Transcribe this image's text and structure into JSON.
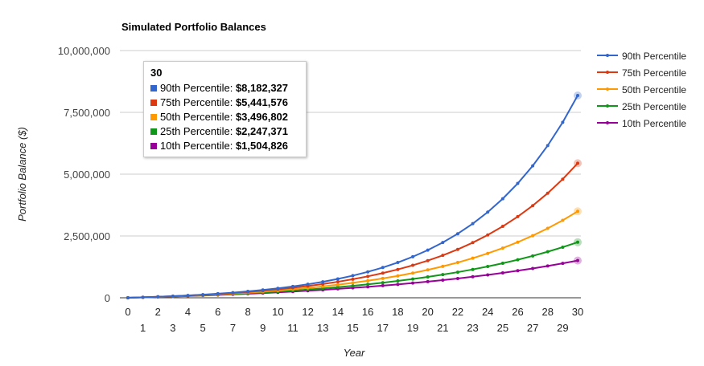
{
  "chart_data": {
    "type": "line",
    "title": "Simulated Portfolio Balances",
    "xlabel": "Year",
    "ylabel": "Portfolio Balance ($)",
    "ylim": [
      0,
      10000000
    ],
    "yticks": [
      "0",
      "2,500,000",
      "5,000,000",
      "7,500,000",
      "10,000,000"
    ],
    "ytick_values": [
      0,
      2500000,
      5000000,
      7500000,
      10000000
    ],
    "x": [
      0,
      1,
      2,
      3,
      4,
      5,
      6,
      7,
      8,
      9,
      10,
      11,
      12,
      13,
      14,
      15,
      16,
      17,
      18,
      19,
      20,
      21,
      22,
      23,
      24,
      25,
      26,
      27,
      28,
      29,
      30
    ],
    "grid": true,
    "legend_position": "right",
    "series": [
      {
        "name": "90th Percentile",
        "color": "#3366cc",
        "values": [
          0,
          18800,
          40500,
          65400,
          94000,
          126900,
          164800,
          208300,
          258400,
          316000,
          382200,
          458300,
          545900,
          646600,
          762400,
          895600,
          1048800,
          1224900,
          1427500,
          1660400,
          1928300,
          2236400,
          2590600,
          2998100,
          3466600,
          4005400,
          4625000,
          5337700,
          6157000,
          7098300,
          8182327
        ]
      },
      {
        "name": "75th Percentile",
        "color": "#dc3912",
        "values": [
          0,
          18600,
          39500,
          63200,
          90000,
          120300,
          154500,
          193100,
          236800,
          286100,
          341900,
          404900,
          476000,
          556500,
          647400,
          750100,
          866200,
          997300,
          1145600,
          1313000,
          1502300,
          1716100,
          1957800,
          2230900,
          2539400,
          2888100,
          3282100,
          3727400,
          4230500,
          4799000,
          5441576
        ]
      },
      {
        "name": "50th Percentile",
        "color": "#ff9900",
        "values": [
          0,
          17600,
          37100,
          58700,
          82800,
          109400,
          139000,
          171900,
          208400,
          248900,
          293800,
          343700,
          399100,
          460500,
          528800,
          604500,
          688600,
          781900,
          885500,
          1000400,
          1128000,
          1269600,
          1426900,
          1601500,
          1795200,
          2010200,
          2249000,
          2513900,
          2808000,
          3134500,
          3496802
        ]
      },
      {
        "name": "25th Percentile",
        "color": "#109618",
        "values": [
          0,
          16500,
          34500,
          54000,
          75400,
          98700,
          124000,
          151700,
          181800,
          214700,
          250500,
          289500,
          332100,
          378400,
          429000,
          484100,
          544200,
          609600,
          681000,
          758700,
          843500,
          935900,
          1036700,
          1146400,
          1266100,
          1396500,
          1538700,
          1693700,
          1862600,
          2046700,
          2247371
        ]
      },
      {
        "name": "10th Percentile",
        "color": "#990099",
        "values": [
          0,
          15900,
          33000,
          51200,
          70700,
          91600,
          114000,
          137900,
          163500,
          190800,
          220100,
          251500,
          285000,
          320900,
          359300,
          400300,
          444300,
          491300,
          541600,
          595500,
          653100,
          714700,
          780700,
          851300,
          926800,
          1007600,
          1094100,
          1186600,
          1285600,
          1391500,
          1504826
        ]
      }
    ],
    "tooltip": {
      "title": "30",
      "rows": [
        {
          "label": "90th Percentile: ",
          "value": "$8,182,327"
        },
        {
          "label": "75th Percentile: ",
          "value": "$5,441,576"
        },
        {
          "label": "50th Percentile: ",
          "value": "$3,496,802"
        },
        {
          "label": "25th Percentile: ",
          "value": "$2,247,371"
        },
        {
          "label": "10th Percentile: ",
          "value": "$1,504,826"
        }
      ]
    }
  }
}
